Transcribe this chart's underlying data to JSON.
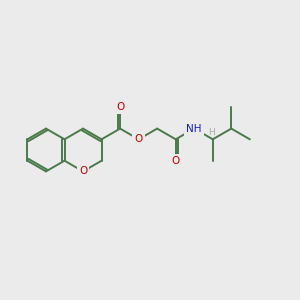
{
  "bg_color": "#ebebeb",
  "bond_color": "#4a7a4a",
  "O_color": "#cc0000",
  "N_color": "#1a1acc",
  "H_color": "#aaaaaa",
  "lw": 1.4,
  "fig_size": [
    3.0,
    3.0
  ],
  "dpi": 100,
  "xlim": [
    0,
    10
  ],
  "ylim": [
    1,
    8
  ],
  "BL": 0.72
}
